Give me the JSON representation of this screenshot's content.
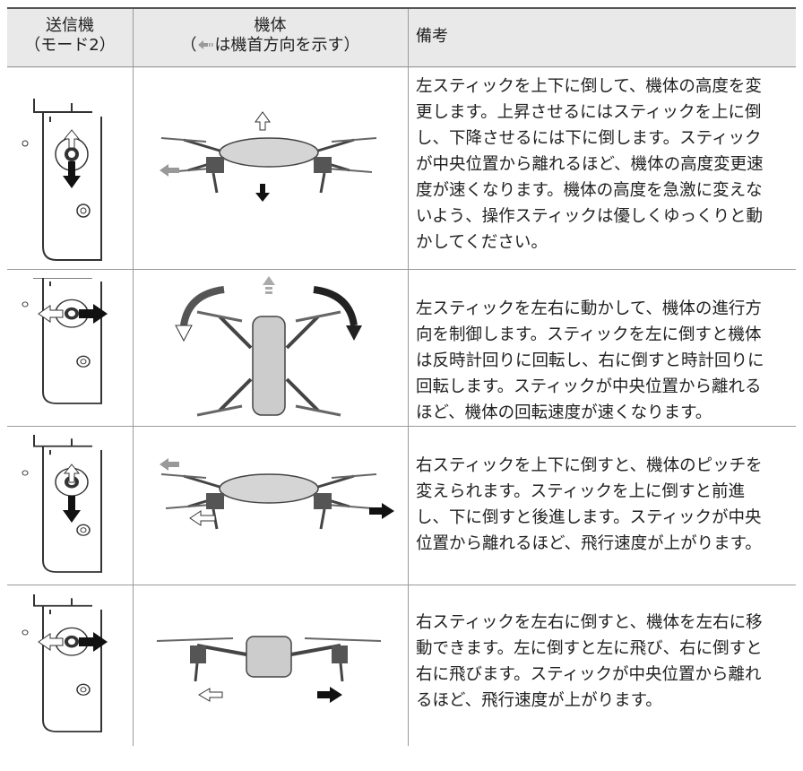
{
  "table": {
    "header": {
      "col1": [
        "送信機",
        "（モード2）"
      ],
      "col2_line1": "機体",
      "col2_prefix": "（",
      "col2_suffix": "は機首方向を示す）",
      "col3": "備考"
    },
    "rows": [
      {
        "lines": [
          "左スティックを上下に倒して、機体の高度を変",
          "更します。上昇させるにはスティックを上に倒",
          "し、下降させるには下に倒します。スティック",
          "が中央位置から離れるほど、機体の高度変更速",
          "度が速くなります。機体の高度を急激に変えな",
          "いよう、操作スティックは優しくゆっくりと動",
          "かしてください。"
        ]
      },
      {
        "lines": [
          "左スティックを左右に動かして、機体の進行方",
          "向を制御します。スティックを左に倒すと機体",
          "は反時計回りに回転し、右に倒すと時計回りに",
          "回転します。スティックが中央位置から離れる",
          "ほど、機体の回転速度が速くなります。"
        ]
      },
      {
        "lines": [
          "右スティックを上下に倒すと、機体のピッチを",
          "変えられます。スティックを上に倒すと前進",
          "し、下に倒すと後進します。スティックが中央",
          "位置から離れるほど、飛行速度が上がります。"
        ]
      },
      {
        "lines": [
          "右スティックを左右に倒すと、機体を左右に移",
          "動できます。左に倒すと左に飛び、右に倒すと",
          "右に飛びます。スティックが中央位置から離れ",
          "るほど、飛行速度が上がります。"
        ]
      }
    ]
  }
}
